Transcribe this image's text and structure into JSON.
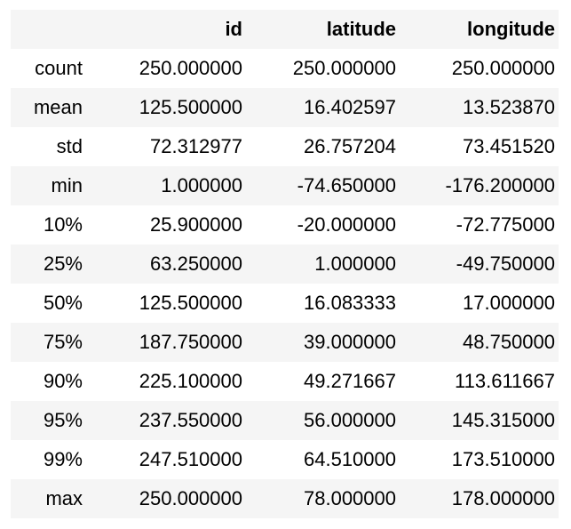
{
  "table": {
    "columns": [
      "id",
      "latitude",
      "longitude"
    ],
    "rows": [
      {
        "label": "count",
        "values": [
          "250.000000",
          "250.000000",
          "250.000000"
        ]
      },
      {
        "label": "mean",
        "values": [
          "125.500000",
          "16.402597",
          "13.523870"
        ]
      },
      {
        "label": "std",
        "values": [
          "72.312977",
          "26.757204",
          "73.451520"
        ]
      },
      {
        "label": "min",
        "values": [
          "1.000000",
          "-74.650000",
          "-176.200000"
        ]
      },
      {
        "label": "10%",
        "values": [
          "25.900000",
          "-20.000000",
          "-72.775000"
        ]
      },
      {
        "label": "25%",
        "values": [
          "63.250000",
          "1.000000",
          "-49.750000"
        ]
      },
      {
        "label": "50%",
        "values": [
          "125.500000",
          "16.083333",
          "17.000000"
        ]
      },
      {
        "label": "75%",
        "values": [
          "187.750000",
          "39.000000",
          "48.750000"
        ]
      },
      {
        "label": "90%",
        "values": [
          "225.100000",
          "49.271667",
          "113.611667"
        ]
      },
      {
        "label": "95%",
        "values": [
          "237.550000",
          "56.000000",
          "145.315000"
        ]
      },
      {
        "label": "99%",
        "values": [
          "247.510000",
          "64.510000",
          "173.510000"
        ]
      },
      {
        "label": "max",
        "values": [
          "250.000000",
          "78.000000",
          "178.000000"
        ]
      }
    ]
  },
  "colors": {
    "stripe": "#f5f5f5",
    "background": "#ffffff",
    "text": "#000000"
  }
}
